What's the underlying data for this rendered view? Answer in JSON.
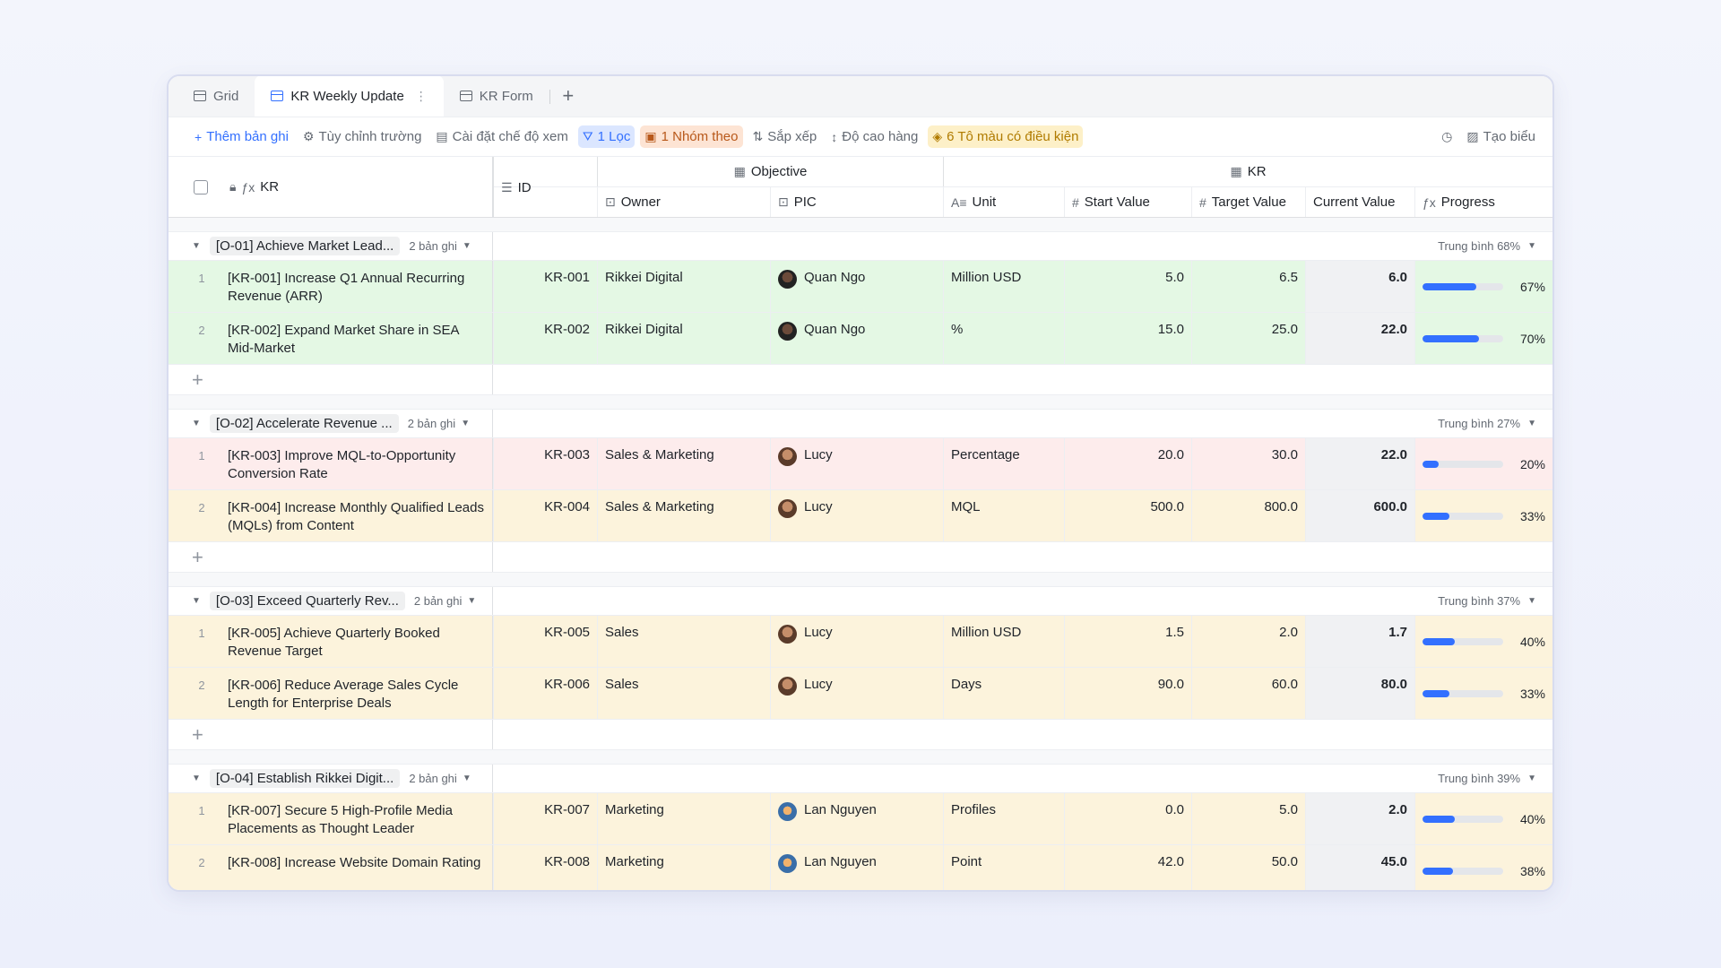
{
  "tabs": [
    {
      "label": "Grid",
      "active": false
    },
    {
      "label": "KR Weekly Update",
      "active": true
    },
    {
      "label": "KR Form",
      "active": false
    }
  ],
  "toolbar": {
    "add_record": "Thêm bản ghi",
    "customize_fields": "Tùy chỉnh trường",
    "view_settings": "Cài đặt chế độ xem",
    "filter": "1 Lọc",
    "group": "1 Nhóm theo",
    "sort": "Sắp xếp",
    "row_height": "Độ cao hàng",
    "conditional_color": "6 Tô màu có điều kiện",
    "create_chart": "Tạo biểu"
  },
  "headers": {
    "kr": "KR",
    "id": "ID",
    "group_objective": "Objective",
    "group_kr": "KR",
    "owner": "Owner",
    "pic": "PIC",
    "unit": "Unit",
    "start": "Start Value",
    "target": "Target Value",
    "current": "Current Value",
    "progress": "Progress"
  },
  "colors": {
    "accent": "#3370ff",
    "green_row": "#e4f8e4",
    "red_row": "#fdecec",
    "yellow_row": "#fcf3dc"
  },
  "groups": [
    {
      "tag": "[O-01] Achieve Market Lead...",
      "count": "2 bản ghi",
      "avg": "Trung bình 68%",
      "rows": [
        {
          "n": "1",
          "kr": "[KR-001] Increase Q1 Annual Recurring Revenue (ARR)",
          "id": "KR-001",
          "owner": "Rikkei Digital",
          "pic": "Quan Ngo",
          "unit": "Million USD",
          "start": "5.0",
          "target": "6.5",
          "current": "6.0",
          "progress": 0.67,
          "pct": "67%",
          "color": "green",
          "avatar": "q"
        },
        {
          "n": "2",
          "kr": "[KR-002] Expand Market Share in SEA Mid-Market",
          "id": "KR-002",
          "owner": "Rikkei Digital",
          "pic": "Quan Ngo",
          "unit": "%",
          "start": "15.0",
          "target": "25.0",
          "current": "22.0",
          "progress": 0.7,
          "pct": "70%",
          "color": "green",
          "avatar": "q"
        }
      ]
    },
    {
      "tag": "[O-02] Accelerate Revenue ...",
      "count": "2 bản ghi",
      "avg": "Trung bình 27%",
      "rows": [
        {
          "n": "1",
          "kr": "[KR-003] Improve MQL-to-Opportunity Conversion Rate",
          "id": "KR-003",
          "owner": "Sales & Marketing",
          "pic": "Lucy",
          "unit": "Percentage",
          "start": "20.0",
          "target": "30.0",
          "current": "22.0",
          "progress": 0.2,
          "pct": "20%",
          "color": "red",
          "avatar": "l"
        },
        {
          "n": "2",
          "kr": "[KR-004] Increase Monthly Qualified Leads (MQLs) from Content",
          "id": "KR-004",
          "owner": "Sales & Marketing",
          "pic": "Lucy",
          "unit": "MQL",
          "start": "500.0",
          "target": "800.0",
          "current": "600.0",
          "progress": 0.33,
          "pct": "33%",
          "color": "yellow",
          "avatar": "l"
        }
      ]
    },
    {
      "tag": "[O-03] Exceed Quarterly Rev...",
      "count": "2 bản ghi",
      "avg": "Trung bình 37%",
      "rows": [
        {
          "n": "1",
          "kr": "[KR-005] Achieve Quarterly Booked Revenue Target",
          "id": "KR-005",
          "owner": "Sales",
          "pic": "Lucy",
          "unit": "Million USD",
          "start": "1.5",
          "target": "2.0",
          "current": "1.7",
          "progress": 0.4,
          "pct": "40%",
          "color": "yellow",
          "avatar": "l"
        },
        {
          "n": "2",
          "kr": "[KR-006] Reduce Average Sales Cycle Length for Enterprise Deals",
          "id": "KR-006",
          "owner": "Sales",
          "pic": "Lucy",
          "unit": "Days",
          "start": "90.0",
          "target": "60.0",
          "current": "80.0",
          "progress": 0.33,
          "pct": "33%",
          "color": "yellow",
          "avatar": "l"
        }
      ]
    },
    {
      "tag": "[O-04] Establish Rikkei Digit...",
      "count": "2 bản ghi",
      "avg": "Trung bình 39%",
      "rows": [
        {
          "n": "1",
          "kr": "[KR-007] Secure 5 High-Profile Media Placements as Thought Leader",
          "id": "KR-007",
          "owner": "Marketing",
          "pic": "Lan Nguyen",
          "unit": "Profiles",
          "start": "0.0",
          "target": "5.0",
          "current": "2.0",
          "progress": 0.4,
          "pct": "40%",
          "color": "yellow",
          "avatar": "n"
        },
        {
          "n": "2",
          "kr": "[KR-008] Increase Website Domain Rating",
          "id": "KR-008",
          "owner": "Marketing",
          "pic": "Lan Nguyen",
          "unit": "Point",
          "start": "42.0",
          "target": "50.0",
          "current": "45.0",
          "progress": 0.38,
          "pct": "38%",
          "color": "yellow",
          "avatar": "n"
        }
      ]
    }
  ]
}
